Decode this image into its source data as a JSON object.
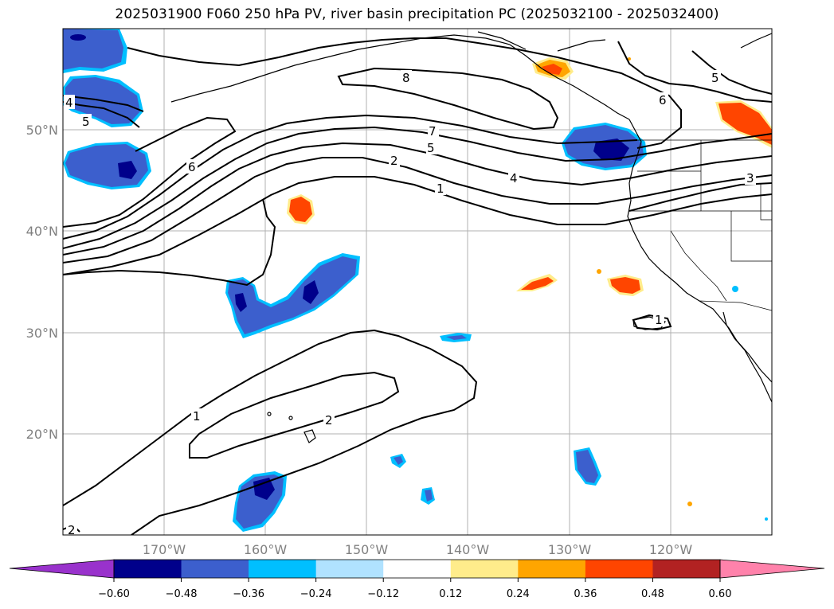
{
  "title": "2025031900 F060 250 hPa PV, river basin precipitation PC (2025032100 - 2025032400)",
  "map": {
    "projection": "PlateCarree",
    "extent_lon": [
      -180,
      -110
    ],
    "extent_lat": [
      10,
      60
    ],
    "lat_ticks": [
      "50°N",
      "40°N",
      "30°N",
      "20°N"
    ],
    "lon_ticks": [
      "170°W",
      "160°W",
      "150°W",
      "140°W",
      "130°W",
      "120°W"
    ],
    "gridlines": true,
    "coastlines": true,
    "state_borders": true
  },
  "contours": {
    "field": "250 hPa PV",
    "color": "#000000",
    "labels": [
      "8",
      "7",
      "5",
      "6",
      "6",
      "5",
      "5",
      "4",
      "4",
      "2",
      "1",
      "3",
      "1",
      "1",
      "2",
      "2"
    ]
  },
  "colorbar": {
    "ticks": [
      "−0.60",
      "−0.48",
      "−0.36",
      "−0.24",
      "−0.12",
      "0.12",
      "0.24",
      "0.36",
      "0.48",
      "0.60"
    ],
    "bounds": [
      -0.6,
      -0.48,
      -0.36,
      -0.24,
      -0.12,
      0.12,
      0.24,
      0.36,
      0.48,
      0.6
    ],
    "colors": [
      "#9932cc",
      "#00008b",
      "#3c5fcd",
      "#00bfff",
      "#b0e2ff",
      "#ffffff",
      "#ffec8b",
      "#ffa500",
      "#ff4500",
      "#b22222",
      "#ff82ab"
    ],
    "extend": "both"
  },
  "palette": {
    "neg_dark": "#00008b",
    "neg_mid": "#3c5fcd",
    "neg_light": "#00bfff",
    "pos_light": "#ffec8b",
    "pos_mid": "#ffa500",
    "pos_dark": "#ff4500",
    "grid": "#b0b0b0"
  }
}
